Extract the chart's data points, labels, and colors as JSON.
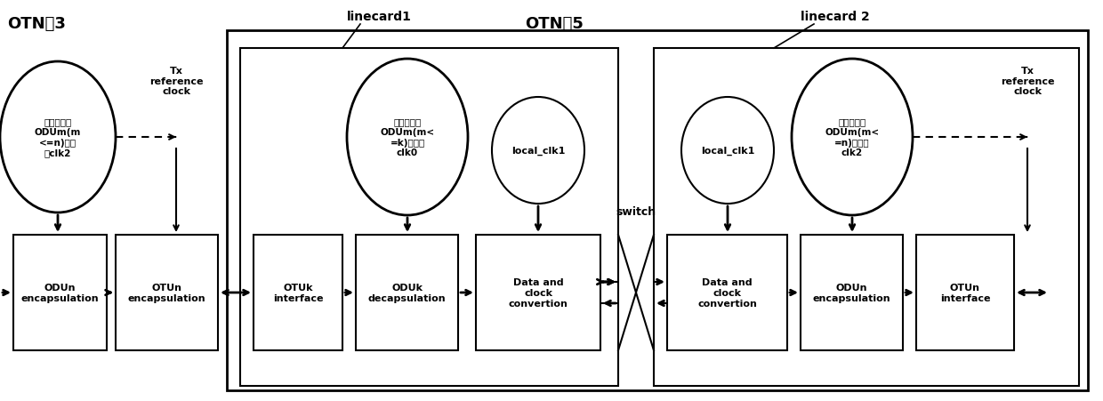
{
  "fig_width": 12.4,
  "fig_height": 4.52,
  "dpi": 100,
  "bg_color": "#ffffff",
  "otn3_label": "OTN：3",
  "otn5_label": "OTN：5",
  "linecard1_label": "linecard1",
  "linecard2_label": "linecard 2",
  "switch_label": "switch",
  "tx_ref_clock_left": "Tx\nreference\nclock",
  "tx_ref_clock_right": "Tx\nreference\nclock",
  "circle_left_text": "恢复出某路\nODUm(m\n<=n)的时\n钟clk2",
  "circle_lc1_text": "恢复出某路\nODUm(m<\n=k)的时钟\nclk0",
  "circle_lc2_text": "恢复出某路\nODUm(m<\n=n)的时钟\nclk2",
  "local_clk1_lc1": "local_clk1",
  "local_clk1_lc2": "local_clk1",
  "box_odn_enc_left": "ODUn\nencapsulation",
  "box_otun_enc_left": "OTUn\nencapsulation",
  "box_otuk_iface": "OTUk\ninterface",
  "box_oduk_decap": "ODUk\ndecapsulation",
  "box_data_clk_conv_lc1": "Data and\nclock\nconvertion",
  "box_data_clk_conv_lc2": "Data and\nclock\nconvertion",
  "box_odun_enc_lc2": "ODUn\nencapsulation",
  "box_otun_iface_lc2": "OTUn\ninterface"
}
